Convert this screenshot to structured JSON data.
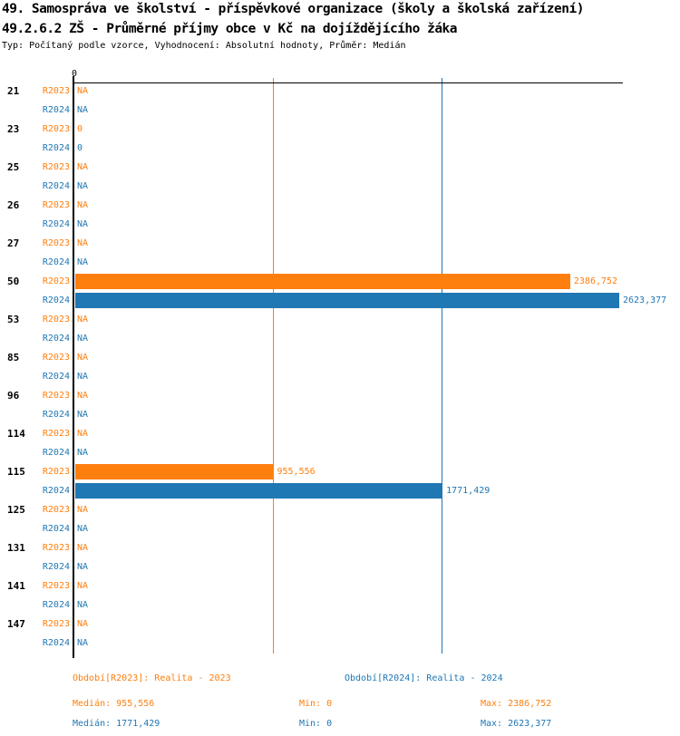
{
  "chart_data": {
    "type": "bar",
    "orientation": "horizontal",
    "title_lines": [
      "49. Samospráva ve školství - příspěvkové organizace (školy a školská zařízení)",
      "49.2.6.2 ZŠ - Průměrné příjmy obce v Kč na dojíždějícího žáka"
    ],
    "subtitle": "Typ: Počítaný podle vzorce, Vyhodnocení: Absolutní hodnoty, Průměr: Medián",
    "x_axis": {
      "zero_tick_label": "0",
      "min": 0,
      "axis_max": 2645
    },
    "grid": "median-reference-lines",
    "legend_position": "bottom",
    "series": [
      {
        "id": "r2023",
        "row_label": "R2023",
        "color": "#ff7f0e",
        "period_label": "Období[R2023]: Realita - 2023",
        "median": 955.556,
        "min": 0,
        "max": 2386.752,
        "stats": {
          "median_label": "Medián: 955,556",
          "min_label": "Min: 0",
          "max_label": "Max: 2386,752"
        }
      },
      {
        "id": "r2024",
        "row_label": "R2024",
        "color": "#1f77b4",
        "period_label": "Období[R2024]: Realita - 2024",
        "median": 1771.429,
        "min": 0,
        "max": 2623.377,
        "stats": {
          "median_label": "Medián: 1771,429",
          "min_label": "Min: 0",
          "max_label": "Max: 2623,377"
        }
      }
    ],
    "categories": [
      {
        "label": "21",
        "values": [
          {
            "value": null,
            "text": "NA"
          },
          {
            "value": null,
            "text": "NA"
          }
        ]
      },
      {
        "label": "23",
        "values": [
          {
            "value": 0,
            "text": "0"
          },
          {
            "value": 0,
            "text": "0"
          }
        ]
      },
      {
        "label": "25",
        "values": [
          {
            "value": null,
            "text": "NA"
          },
          {
            "value": null,
            "text": "NA"
          }
        ]
      },
      {
        "label": "26",
        "values": [
          {
            "value": null,
            "text": "NA"
          },
          {
            "value": null,
            "text": "NA"
          }
        ]
      },
      {
        "label": "27",
        "values": [
          {
            "value": null,
            "text": "NA"
          },
          {
            "value": null,
            "text": "NA"
          }
        ]
      },
      {
        "label": "50",
        "values": [
          {
            "value": 2386.752,
            "text": "2386,752"
          },
          {
            "value": 2623.377,
            "text": "2623,377"
          }
        ]
      },
      {
        "label": "53",
        "values": [
          {
            "value": null,
            "text": "NA"
          },
          {
            "value": null,
            "text": "NA"
          }
        ]
      },
      {
        "label": "85",
        "values": [
          {
            "value": null,
            "text": "NA"
          },
          {
            "value": null,
            "text": "NA"
          }
        ]
      },
      {
        "label": "96",
        "values": [
          {
            "value": null,
            "text": "NA"
          },
          {
            "value": null,
            "text": "NA"
          }
        ]
      },
      {
        "label": "114",
        "values": [
          {
            "value": null,
            "text": "NA"
          },
          {
            "value": null,
            "text": "NA"
          }
        ]
      },
      {
        "label": "115",
        "values": [
          {
            "value": 955.556,
            "text": "955,556"
          },
          {
            "value": 1771.429,
            "text": "1771,429"
          }
        ]
      },
      {
        "label": "125",
        "values": [
          {
            "value": null,
            "text": "NA"
          },
          {
            "value": null,
            "text": "NA"
          }
        ]
      },
      {
        "label": "131",
        "values": [
          {
            "value": null,
            "text": "NA"
          },
          {
            "value": null,
            "text": "NA"
          }
        ]
      },
      {
        "label": "141",
        "values": [
          {
            "value": null,
            "text": "NA"
          },
          {
            "value": null,
            "text": "NA"
          }
        ]
      },
      {
        "label": "147",
        "values": [
          {
            "value": null,
            "text": "NA"
          },
          {
            "value": null,
            "text": "NA"
          }
        ]
      }
    ]
  }
}
